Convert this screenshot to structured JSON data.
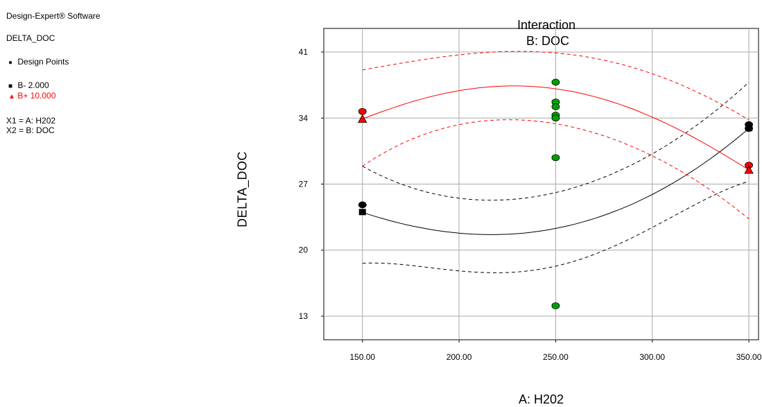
{
  "sidebar": {
    "software": "Design-Expert® Software",
    "response": "DELTA_DOC",
    "design_points": "Design Points",
    "b_minus": "B- 2.000",
    "b_plus": "B+ 10.000",
    "x1": "X1 = A: H202",
    "x2": "X2 = B: DOC"
  },
  "colors": {
    "low": "#000000",
    "high": "#ff0000",
    "center": "#00a000",
    "grid": "#a8a8a8"
  },
  "chart_data": {
    "type": "line",
    "title": "Interaction",
    "subtitle": "B: DOC",
    "xlabel": "A: H202",
    "ylabel": "DELTA_DOC",
    "xlim": [
      130,
      355
    ],
    "ylim": [
      10.5,
      43.5
    ],
    "xticks": [
      150,
      200,
      250,
      300,
      350
    ],
    "xtick_labels": [
      "150.00",
      "200.00",
      "250.00",
      "300.00",
      "350.00"
    ],
    "yticks": [
      13,
      20,
      27,
      34,
      41
    ],
    "ytick_labels": [
      "13",
      "20",
      "27",
      "34",
      "41"
    ],
    "grid": true,
    "legend_position": "left",
    "series": [
      {
        "name": "B- 2.000",
        "color": "#000000",
        "marker": "square",
        "x": [
          150,
          200,
          250,
          300,
          350
        ],
        "y": [
          24.0,
          21.8,
          22.3,
          25.9,
          32.9
        ],
        "ci_lower": {
          "x": [
            150,
            200,
            250,
            300,
            350
          ],
          "y": [
            18.6,
            17.8,
            18.3,
            22.4,
            27.3
          ]
        },
        "ci_upper": {
          "x": [
            150,
            200,
            250,
            300,
            350
          ],
          "y": [
            28.9,
            25.5,
            26.1,
            30.2,
            37.8
          ]
        }
      },
      {
        "name": "B+ 10.000",
        "color": "#ff0000",
        "marker": "triangle",
        "x": [
          150,
          200,
          250,
          300,
          350
        ],
        "y": [
          33.9,
          36.9,
          37.1,
          34.1,
          28.5
        ],
        "ci_lower": {
          "x": [
            150,
            200,
            250,
            300,
            350
          ],
          "y": [
            28.9,
            33.3,
            33.4,
            30.0,
            23.3
          ]
        },
        "ci_upper": {
          "x": [
            150,
            200,
            250,
            300,
            350
          ],
          "y": [
            39.1,
            40.7,
            40.9,
            38.7,
            33.8
          ]
        }
      }
    ],
    "design_points": [
      {
        "x": 150,
        "y": 24.8,
        "group": "low"
      },
      {
        "x": 350,
        "y": 33.3,
        "group": "low"
      },
      {
        "x": 350,
        "y": 32.9,
        "group": "low"
      },
      {
        "x": 150,
        "y": 34.7,
        "group": "high"
      },
      {
        "x": 350,
        "y": 29.0,
        "group": "high"
      },
      {
        "x": 250,
        "y": 37.8,
        "group": "center"
      },
      {
        "x": 250,
        "y": 35.7,
        "group": "center"
      },
      {
        "x": 250,
        "y": 35.2,
        "group": "center"
      },
      {
        "x": 250,
        "y": 34.3,
        "group": "center"
      },
      {
        "x": 250,
        "y": 34.0,
        "group": "center"
      },
      {
        "x": 250,
        "y": 29.8,
        "group": "center"
      },
      {
        "x": 250,
        "y": 14.1,
        "group": "center"
      }
    ]
  }
}
